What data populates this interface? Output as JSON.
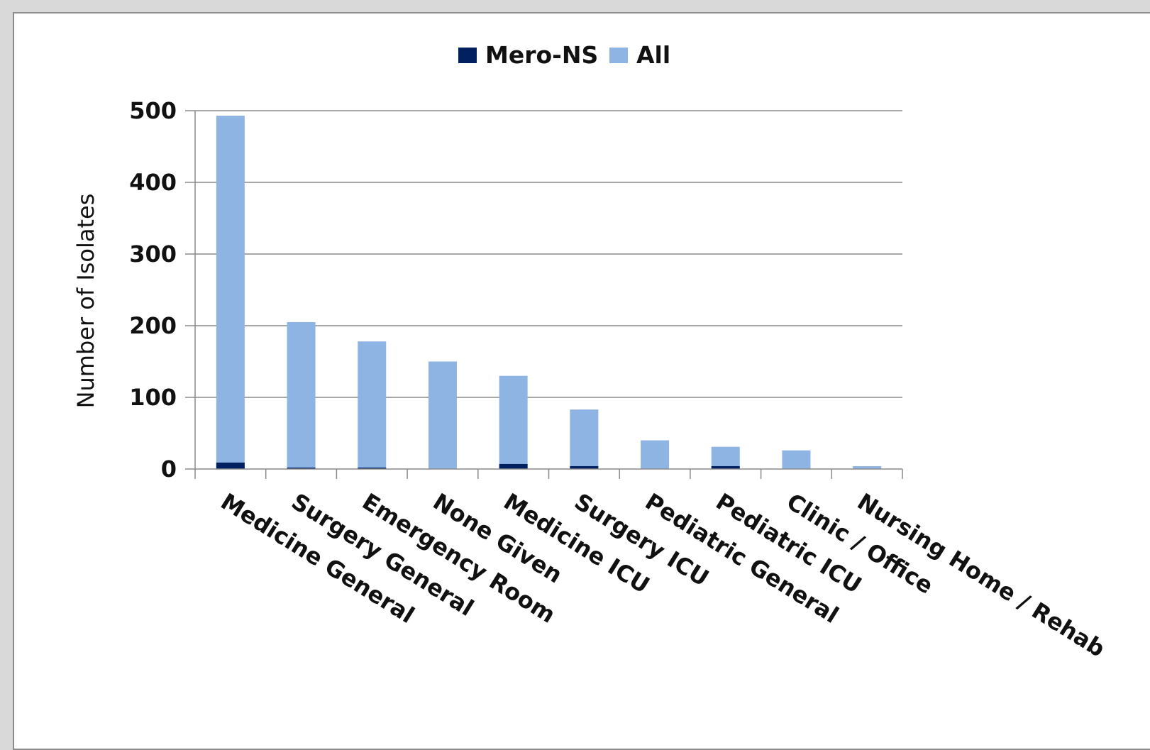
{
  "chart_data": {
    "type": "bar",
    "stacked": true,
    "categories": [
      "Medicine General",
      "Surgery General",
      "Emergency Room",
      "None Given",
      "Medicine ICU",
      "Surgery ICU",
      "Pediatric General",
      "Pediatric ICU",
      "Clinic / Office",
      "Nursing Home / Rehab"
    ],
    "series": [
      {
        "name": "Mero-NS",
        "color": "#002060",
        "values": [
          9,
          2,
          2,
          0,
          7,
          4,
          0,
          4,
          0,
          0
        ]
      },
      {
        "name": "All",
        "color": "#8eb4e3",
        "values": [
          493,
          205,
          178,
          150,
          130,
          83,
          40,
          31,
          26,
          4
        ]
      }
    ],
    "ylabel": "Number of Isolates",
    "xlabel": "",
    "ylim": [
      0,
      500
    ],
    "yticks": [
      "0",
      "100",
      "200",
      "300",
      "400",
      "500"
    ],
    "grid": true,
    "legend_position": "top"
  }
}
